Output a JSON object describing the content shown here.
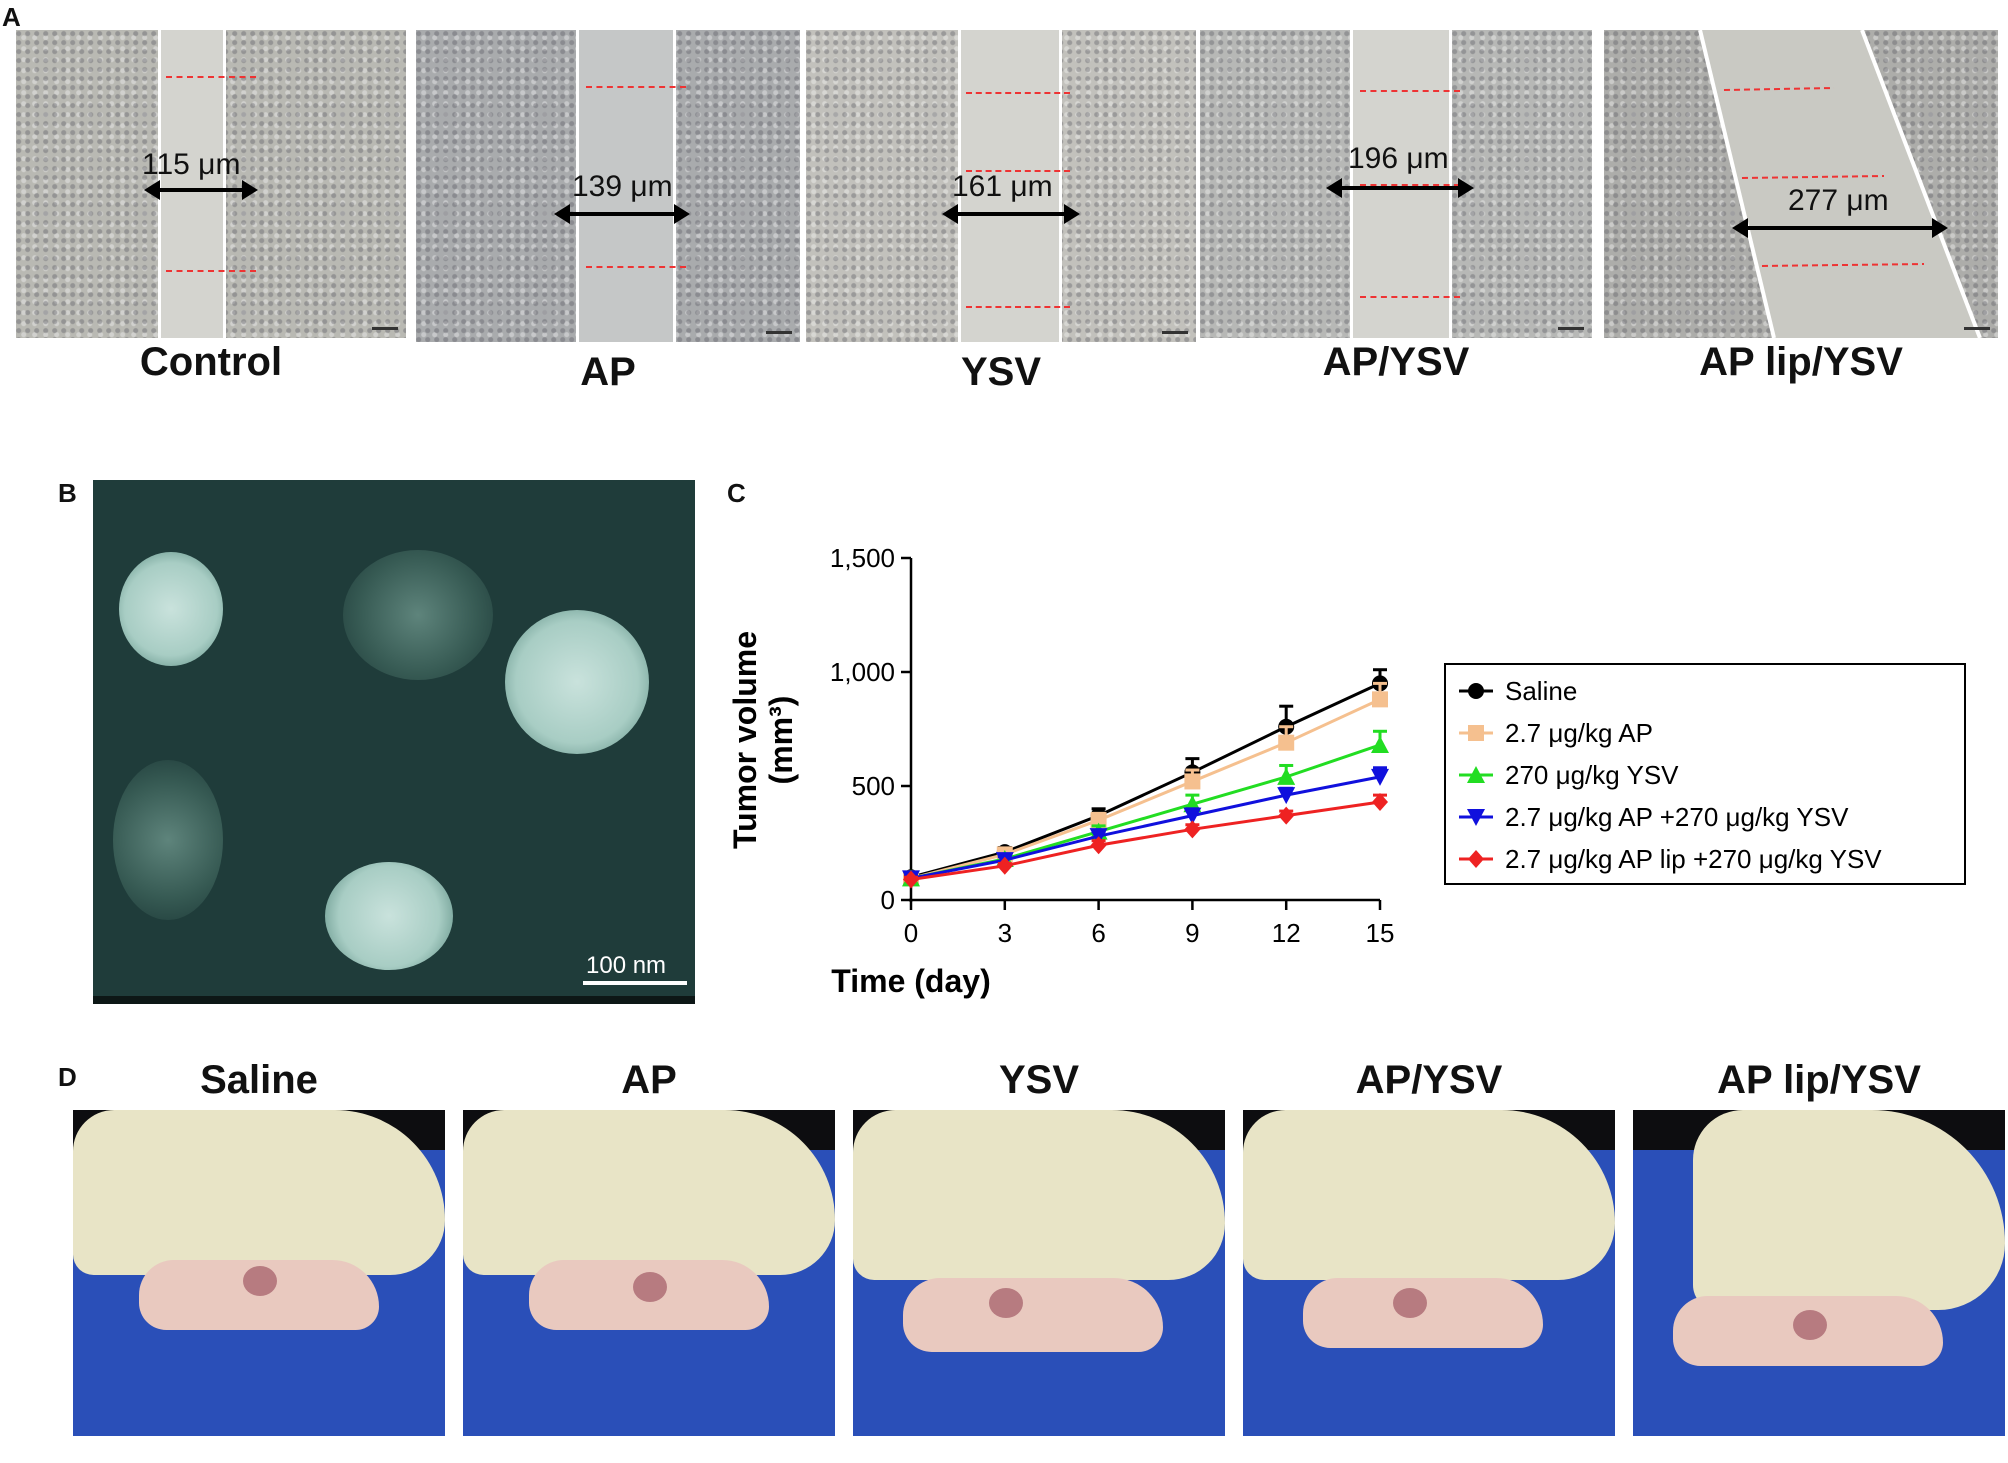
{
  "panels": {
    "A": "A",
    "B": "B",
    "C": "C",
    "D": "D"
  },
  "scratch": [
    {
      "label": "Control",
      "width": "115 μm"
    },
    {
      "label": "AP",
      "width": "139 μm"
    },
    {
      "label": "YSV",
      "width": "161 μm"
    },
    {
      "label": "AP/YSV",
      "width": "196 μm"
    },
    {
      "label": "AP lip/YSV",
      "width": "277 μm"
    }
  ],
  "tem": {
    "scale_label": "100 nm"
  },
  "mice": [
    {
      "label": "Saline"
    },
    {
      "label": "AP"
    },
    {
      "label": "YSV"
    },
    {
      "label": "AP/YSV"
    },
    {
      "label": "AP lip/YSV"
    }
  ],
  "chart_data": {
    "type": "line",
    "xlabel": "Time (day)",
    "ylabel": "Tumor volume (mm³)",
    "x": [
      0,
      3,
      6,
      9,
      12,
      15
    ],
    "xticks": [
      "0",
      "3",
      "6",
      "9",
      "12",
      "15"
    ],
    "yticks": [
      "0",
      "500",
      "1,000",
      "1,500"
    ],
    "ylim": [
      0,
      1500
    ],
    "xlim": [
      0,
      15
    ],
    "legend_position": "right",
    "series": [
      {
        "name": "Saline",
        "color": "#000000",
        "marker": "circle",
        "values": [
          100,
          210,
          370,
          560,
          760,
          950
        ],
        "errors": [
          10,
          20,
          30,
          60,
          90,
          60
        ]
      },
      {
        "name": "2.7 μg/kg AP",
        "color": "#f5c08f",
        "marker": "square",
        "values": [
          95,
          200,
          350,
          520,
          690,
          880
        ],
        "errors": [
          10,
          20,
          30,
          50,
          70,
          70
        ]
      },
      {
        "name": "270 μg/kg YSV",
        "color": "#22dd22",
        "marker": "triangle-up",
        "values": [
          95,
          180,
          300,
          420,
          540,
          680
        ],
        "errors": [
          10,
          15,
          25,
          40,
          50,
          60
        ]
      },
      {
        "name": "2.7 μg/kg AP +270 μg/kg YSV",
        "color": "#1010dd",
        "marker": "triangle-down",
        "values": [
          95,
          175,
          280,
          370,
          460,
          540
        ],
        "errors": [
          10,
          15,
          20,
          30,
          30,
          40
        ]
      },
      {
        "name": "2.7 μg/kg AP lip +270 μg/kg YSV",
        "color": "#ee2222",
        "marker": "diamond",
        "values": [
          90,
          150,
          240,
          310,
          370,
          430
        ],
        "errors": [
          10,
          10,
          20,
          20,
          20,
          30
        ]
      }
    ]
  }
}
